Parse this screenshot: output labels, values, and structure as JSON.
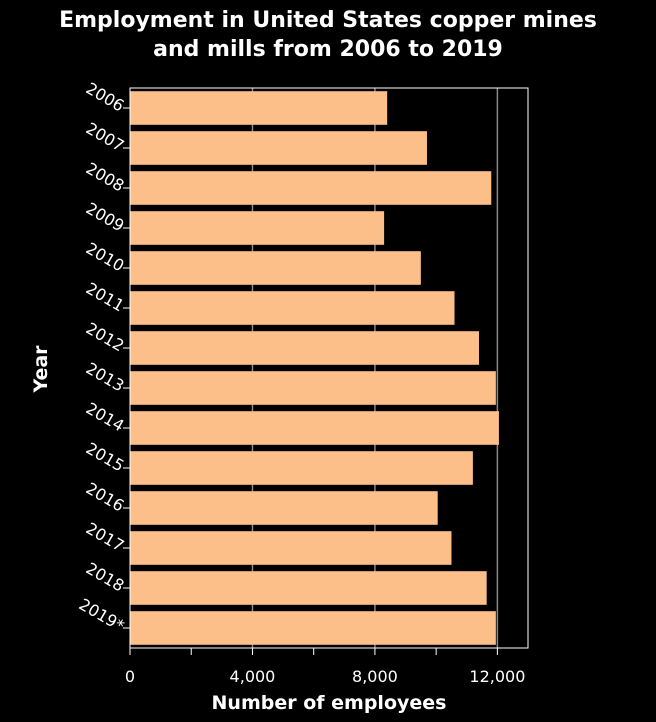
{
  "chart_data": {
    "type": "bar",
    "orientation": "horizontal",
    "title": "Employment in United States copper mines\nand mills from 2006 to 2019",
    "xlabel": "Number of employees",
    "ylabel": "Year",
    "categories": [
      "2006",
      "2007",
      "2008",
      "2009",
      "2010",
      "2011",
      "2012",
      "2013",
      "2014",
      "2015",
      "2016",
      "2017",
      "2018",
      "2019*"
    ],
    "values": [
      8400,
      9700,
      11800,
      8300,
      9500,
      10600,
      11400,
      11950,
      12050,
      11200,
      10050,
      10500,
      11650,
      11950
    ],
    "xlim": [
      0,
      13000
    ],
    "xticks": [
      0,
      4000,
      8000,
      12000
    ],
    "xtick_labels": [
      "0",
      "4,000",
      "8,000",
      "12,000"
    ],
    "grid": "vertical",
    "colors": {
      "background": "#000000",
      "plot_background": "#000000",
      "bar": "#fdbf8a",
      "text": "#ffffff",
      "axis": "#ffffff",
      "grid": "#888888"
    }
  }
}
